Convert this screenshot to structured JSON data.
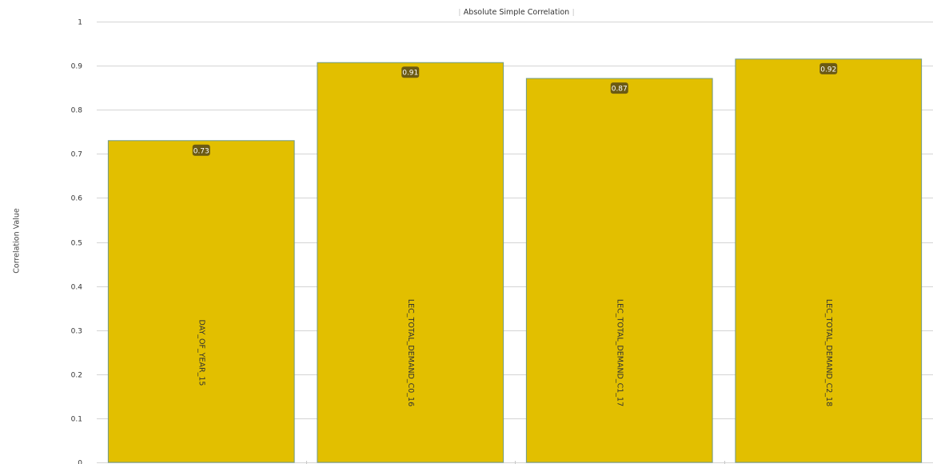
{
  "chart_data": {
    "type": "bar",
    "title": "Absolute Simple Correlation",
    "xlabel": "",
    "ylabel": "Correlation Value",
    "categories": [
      "DAY_OF_YEAR_15",
      "LEC_TOTAL_DEMAND_C0_16",
      "LEC_TOTAL_DEMAND_C1_17",
      "LEC_TOTAL_DEMAND_C2_18"
    ],
    "values": [
      0.73,
      0.907,
      0.871,
      0.915
    ],
    "value_labels": [
      "0.73",
      "0.91",
      "0.87",
      "0.92"
    ],
    "ylim": [
      0,
      1
    ],
    "yticks": [
      "0",
      "0.1",
      "0.2",
      "0.3",
      "0.4",
      "0.5",
      "0.6",
      "0.7",
      "0.8",
      "0.9",
      "1"
    ],
    "grid": true,
    "legend": "none",
    "colors": {
      "bar_fill": "#e2bf00",
      "bar_stroke": "#6f9a8a",
      "value_badge": "#6b5a14",
      "grid": "#d4d4d4",
      "text": "#333333"
    }
  }
}
